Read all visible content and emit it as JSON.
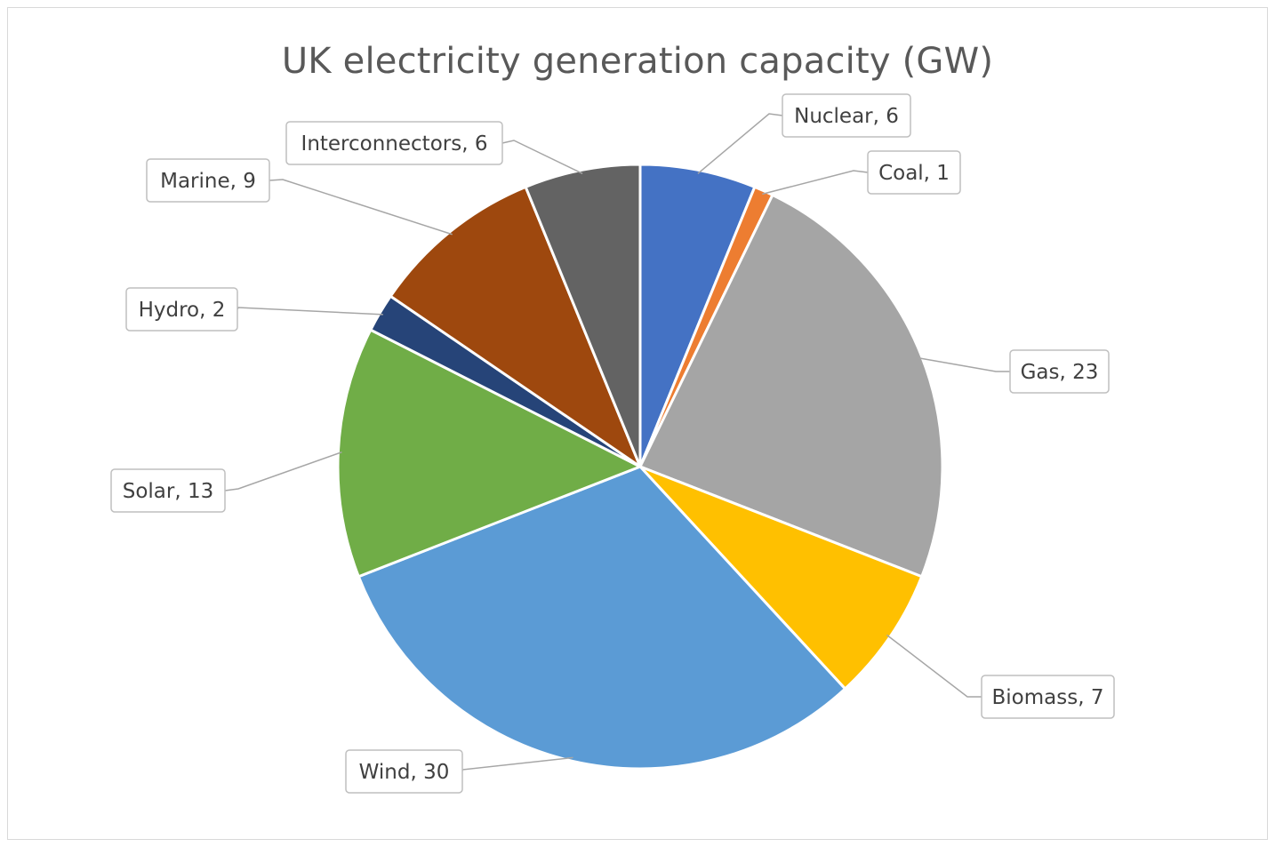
{
  "chart_data": {
    "type": "pie",
    "title": "UK electricity generation capacity (GW)",
    "slices": [
      {
        "label": "Nuclear",
        "value": 6,
        "color": "#4472C4"
      },
      {
        "label": "Coal",
        "value": 1,
        "color": "#ED7D31"
      },
      {
        "label": "Gas",
        "value": 23,
        "color": "#A5A5A5"
      },
      {
        "label": "Biomass",
        "value": 7,
        "color": "#FFC000"
      },
      {
        "label": "Wind",
        "value": 30,
        "color": "#5B9BD5"
      },
      {
        "label": "Solar",
        "value": 13,
        "color": "#70AD47"
      },
      {
        "label": "Hydro",
        "value": 2,
        "color": "#264478"
      },
      {
        "label": "Marine",
        "value": 9,
        "color": "#9E480E"
      },
      {
        "label": "Interconnectors",
        "value": 6,
        "color": "#636363"
      }
    ],
    "data_labels": [
      "Nuclear, 6",
      "Coal, 1",
      "Gas, 23",
      "Biomass, 7",
      "Wind, 30",
      "Solar, 13",
      "Hydro, 2",
      "Marine, 9",
      "Interconnectors, 6"
    ],
    "legend": "none"
  }
}
